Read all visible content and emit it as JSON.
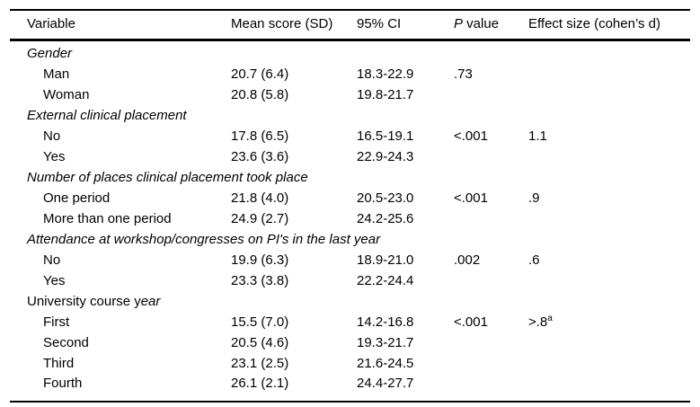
{
  "table": {
    "headers": {
      "variable": "Variable",
      "mean": "Mean score (SD)",
      "ci": "95% CI",
      "p_italic": "P",
      "p_rest": " value",
      "effect": "Effect size (cohen’s d)"
    },
    "groups": [
      {
        "label_regular": "",
        "label_italic": "Gender",
        "rows": [
          {
            "variable": "Man",
            "mean": "20.7 (6.4)",
            "ci": "18.3-22.9",
            "p": ".73",
            "effect": "",
            "effect_sup": ""
          },
          {
            "variable": "Woman",
            "mean": "20.8 (5.8)",
            "ci": "19.8-21.7",
            "p": "",
            "effect": "",
            "effect_sup": ""
          }
        ]
      },
      {
        "label_regular": "",
        "label_italic": "External clinical placement",
        "rows": [
          {
            "variable": "No",
            "mean": "17.8 (6.5)",
            "ci": "16.5-19.1",
            "p": "<.001",
            "effect": "1.1",
            "effect_sup": ""
          },
          {
            "variable": "Yes",
            "mean": "23.6 (3.6)",
            "ci": "22.9-24.3",
            "p": "",
            "effect": "",
            "effect_sup": ""
          }
        ]
      },
      {
        "label_regular": "",
        "label_italic": "Number of places clinical placement took place",
        "rows": [
          {
            "variable": "One period",
            "mean": "21.8 (4.0)",
            "ci": "20.5-23.0",
            "p": "<.001",
            "effect": ".9",
            "effect_sup": ""
          },
          {
            "variable": "More than one period",
            "mean": "24.9 (2.7)",
            "ci": "24.2-25.6",
            "p": "",
            "effect": "",
            "effect_sup": ""
          }
        ]
      },
      {
        "label_regular": "",
        "label_italic": "Attendance at workshop/congresses on PI's in the last year",
        "rows": [
          {
            "variable": "No",
            "mean": "19.9 (6.3)",
            "ci": "18.9-21.0",
            "p": ".002",
            "effect": ".6",
            "effect_sup": ""
          },
          {
            "variable": "Yes",
            "mean": "23.3 (3.8)",
            "ci": "22.2-24.4",
            "p": "",
            "effect": "",
            "effect_sup": ""
          }
        ]
      },
      {
        "label_regular": "University course y",
        "label_italic": "ear",
        "rows": [
          {
            "variable": "First",
            "mean": "15.5 (7.0)",
            "ci": "14.2-16.8",
            "p": "<.001",
            "effect": ">.8",
            "effect_sup": "a"
          },
          {
            "variable": "Second",
            "mean": "20.5 (4.6)",
            "ci": "19.3-21.7",
            "p": "",
            "effect": "",
            "effect_sup": ""
          },
          {
            "variable": "Third",
            "mean": "23.1 (2.5)",
            "ci": "21.6-24.5",
            "p": "",
            "effect": "",
            "effect_sup": ""
          },
          {
            "variable": "Fourth",
            "mean": "26.1 (2.1)",
            "ci": "24.4-27.7",
            "p": "",
            "effect": "",
            "effect_sup": ""
          }
        ]
      }
    ]
  }
}
